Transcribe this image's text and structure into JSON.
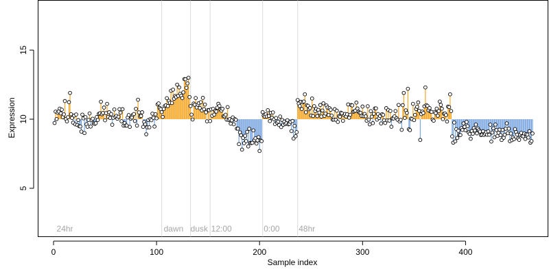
{
  "chart_data": {
    "type": "scatter",
    "title": "",
    "xlabel": "Sample index",
    "ylabel": "Expression",
    "xlim": [
      -15,
      480
    ],
    "ylim": [
      1.5,
      18.6
    ],
    "x_ticks": [
      0,
      100,
      200,
      300,
      400
    ],
    "y_ticks": [
      5,
      10,
      15
    ],
    "baseline": 10,
    "grid": false,
    "legend": "none",
    "colors": {
      "above": "#f5a623",
      "below": "#7aa6e0",
      "point_fill": "#ffffff",
      "point_stroke": "#000000",
      "phase_line": "#d9d9d9",
      "phase_text": "#a6a6a6"
    },
    "phase_lines": [
      105,
      133,
      152,
      203,
      237
    ],
    "phase_labels": [
      {
        "x": 3,
        "label": "24hr"
      },
      {
        "x": 107,
        "label": "dawn"
      },
      {
        "x": 133,
        "label": "dusk"
      },
      {
        "x": 153,
        "label": "12:00"
      },
      {
        "x": 204,
        "label": "0:00"
      },
      {
        "x": 238,
        "label": "48hr"
      }
    ],
    "segments": [
      {
        "x_start": 1,
        "x_end": 20,
        "anchors": [
          [
            1,
            10.3
          ],
          [
            5,
            10.8
          ],
          [
            9,
            10.6
          ],
          [
            13,
            10.2
          ],
          [
            17,
            10.6
          ],
          [
            20,
            10.1
          ]
        ],
        "noise": 0.65,
        "seed": 11
      },
      {
        "x_start": 21,
        "x_end": 104,
        "anchors": [
          [
            21,
            9.9
          ],
          [
            30,
            9.7
          ],
          [
            40,
            10.2
          ],
          [
            50,
            10.5
          ],
          [
            60,
            10.1
          ],
          [
            70,
            9.9
          ],
          [
            80,
            10.3
          ],
          [
            90,
            10.0
          ],
          [
            100,
            10.4
          ],
          [
            104,
            10.6
          ]
        ],
        "noise": 0.6,
        "seed": 23
      },
      {
        "x_start": 105,
        "x_end": 132,
        "anchors": [
          [
            105,
            10.8
          ],
          [
            110,
            11.2
          ],
          [
            118,
            11.8
          ],
          [
            125,
            12.0
          ],
          [
            130,
            12.3
          ],
          [
            132,
            11.8
          ]
        ],
        "noise": 0.45,
        "seed": 37
      },
      {
        "x_start": 133,
        "x_end": 151,
        "anchors": [
          [
            133,
            10.5
          ],
          [
            138,
            10.8
          ],
          [
            143,
            11.1
          ],
          [
            147,
            10.7
          ],
          [
            151,
            10.3
          ]
        ],
        "noise": 0.5,
        "seed": 41
      },
      {
        "x_start": 152,
        "x_end": 202,
        "anchors": [
          [
            152,
            10.6
          ],
          [
            160,
            11.0
          ],
          [
            166,
            10.8
          ],
          [
            172,
            10.0
          ],
          [
            180,
            9.2
          ],
          [
            188,
            8.6
          ],
          [
            195,
            8.5
          ],
          [
            202,
            8.3
          ]
        ],
        "noise": 0.5,
        "seed": 53
      },
      {
        "x_start": 203,
        "x_end": 236,
        "anchors": [
          [
            203,
            10.6
          ],
          [
            210,
            10.3
          ],
          [
            218,
            10.1
          ],
          [
            225,
            9.8
          ],
          [
            231,
            9.4
          ],
          [
            236,
            8.9
          ]
        ],
        "noise": 0.35,
        "seed": 67
      },
      {
        "x_start": 237,
        "x_end": 330,
        "anchors": [
          [
            237,
            11.3
          ],
          [
            245,
            11.0
          ],
          [
            255,
            10.8
          ],
          [
            265,
            10.6
          ],
          [
            275,
            10.3
          ],
          [
            285,
            10.5
          ],
          [
            295,
            10.7
          ],
          [
            305,
            10.4
          ],
          [
            315,
            10.1
          ],
          [
            325,
            10.0
          ],
          [
            330,
            9.9
          ]
        ],
        "noise": 0.5,
        "seed": 79
      },
      {
        "x_start": 331,
        "x_end": 395,
        "anchors": [
          [
            331,
            10.0
          ],
          [
            340,
            10.2
          ],
          [
            350,
            10.6
          ],
          [
            360,
            10.5
          ],
          [
            370,
            10.4
          ],
          [
            380,
            10.6
          ],
          [
            387,
            9.8
          ],
          [
            392,
            9.2
          ],
          [
            395,
            9.4
          ]
        ],
        "noise": 0.65,
        "seed": 83
      },
      {
        "x_start": 396,
        "x_end": 465,
        "anchors": [
          [
            396,
            9.8
          ],
          [
            405,
            9.3
          ],
          [
            415,
            9.1
          ],
          [
            425,
            9.0
          ],
          [
            435,
            8.9
          ],
          [
            445,
            8.8
          ],
          [
            455,
            8.7
          ],
          [
            465,
            8.8
          ]
        ],
        "noise": 0.35,
        "seed": 97
      }
    ],
    "notable_points": [
      [
        16,
        11.9
      ],
      [
        120,
        12.5
      ],
      [
        127,
        12.9
      ],
      [
        131,
        13.0
      ],
      [
        180,
        8.2
      ],
      [
        183,
        7.8
      ],
      [
        200,
        7.7
      ],
      [
        233,
        8.6
      ],
      [
        244,
        11.8
      ],
      [
        340,
        11.9
      ],
      [
        344,
        12.2
      ],
      [
        356,
        8.5
      ],
      [
        361,
        12.3
      ],
      [
        385,
        11.8
      ],
      [
        388,
        8.3
      ],
      [
        390,
        8.4
      ],
      [
        440,
        9.7
      ],
      [
        463,
        8.3
      ]
    ]
  }
}
